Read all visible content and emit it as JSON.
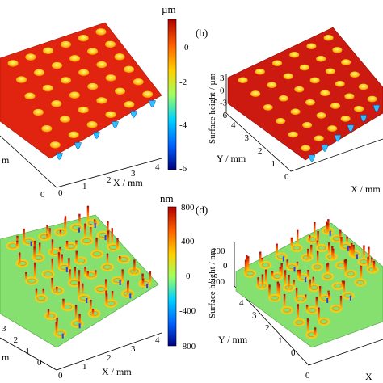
{
  "chart_data": [
    {
      "type": "surface3d",
      "panel": "a",
      "xlabel": "X / mm",
      "ylabel_fragment": "m",
      "x_ticks": [
        "0",
        "1",
        "2",
        "3",
        "4"
      ],
      "y_ticks": [
        "0"
      ],
      "colorbar": {
        "unit": "µm",
        "ticks": [
          "0",
          "-2",
          "-4",
          "-6"
        ],
        "range": [
          -6,
          1
        ],
        "colors": [
          "#000080",
          "#0060ff",
          "#00d0ff",
          "#a0ff60",
          "#ffd000",
          "#ff6000",
          "#b00000"
        ]
      },
      "grid": "6 x 6 circular dimples",
      "base_level": 0.5,
      "dimple_depth": -6
    },
    {
      "type": "surface3d",
      "panel": "b",
      "panel_label": "(b)",
      "xlabel": "X / mm",
      "ylabel": "Y / mm",
      "zlabel": "Surface height / µm",
      "z_ticks": [
        "3",
        "0",
        "-3",
        "-6"
      ],
      "y_ticks": [
        "0",
        "1",
        "2",
        "3",
        "4"
      ],
      "grid": "6 x 6 circular dimples"
    },
    {
      "type": "surface3d",
      "panel": "c",
      "xlabel": "X / mm",
      "ylabel_fragment": "m",
      "x_ticks": [
        "0",
        "1",
        "2",
        "3",
        "4"
      ],
      "y_ticks": [
        "0",
        "1",
        "2",
        "3"
      ],
      "colorbar": {
        "unit": "nm",
        "ticks": [
          "800",
          "400",
          "0",
          "-400",
          "-800"
        ],
        "range": [
          -800,
          800
        ],
        "colors": [
          "#000080",
          "#0060ff",
          "#00d0ff",
          "#a0ff60",
          "#ffd000",
          "#ff6000",
          "#b00000"
        ]
      },
      "grid": "6 x 6 ring features"
    },
    {
      "type": "surface3d",
      "panel": "d",
      "panel_label": "(d)",
      "xlabel": "X",
      "ylabel": "Y / mm",
      "zlabel": "Surface height / nm",
      "z_ticks": [
        "200",
        "0",
        "-200"
      ],
      "y_ticks": [
        "0",
        "1",
        "2",
        "3",
        "4"
      ],
      "x_ticks": [
        "0"
      ],
      "grid": "6 x 6 ring features"
    }
  ]
}
